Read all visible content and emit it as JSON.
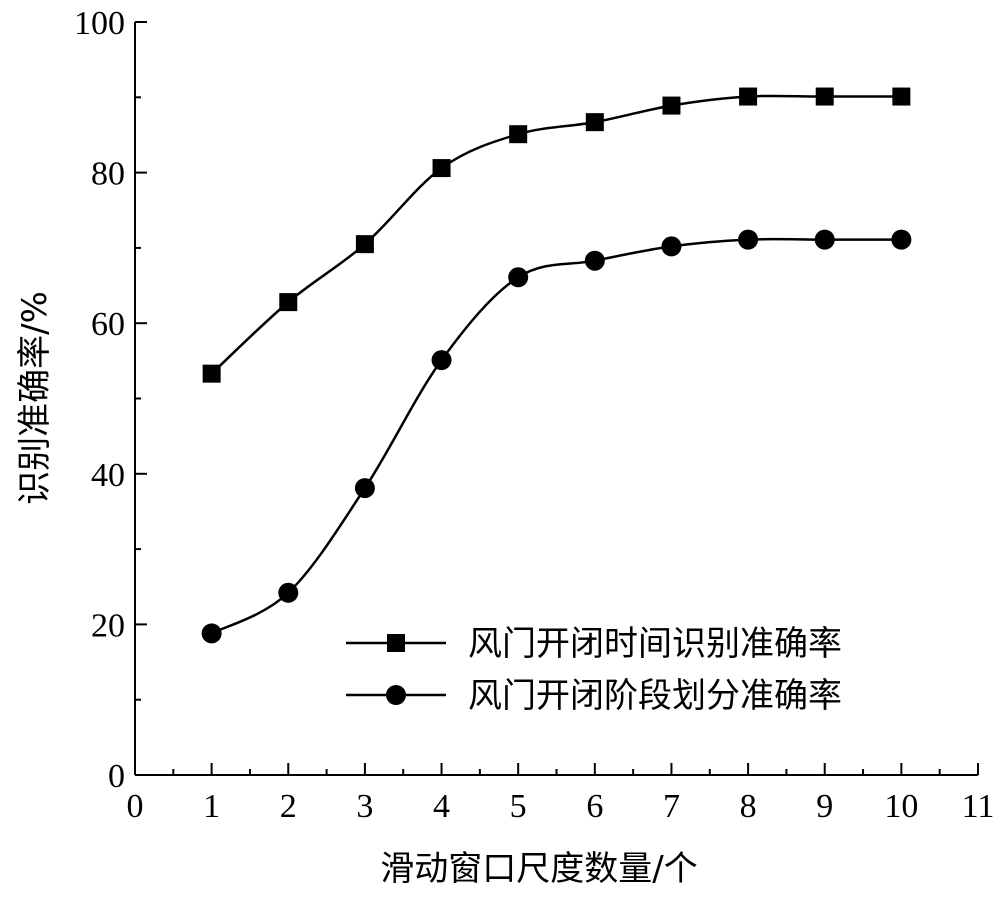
{
  "chart_data": {
    "type": "line",
    "xlabel": "滑动窗口尺度数量/个",
    "ylabel": "识别准确率/%",
    "xlim": [
      0,
      11
    ],
    "ylim": [
      0,
      100
    ],
    "x_ticks": [
      0,
      1,
      2,
      3,
      4,
      5,
      6,
      7,
      8,
      9,
      10,
      11
    ],
    "y_ticks": [
      0,
      20,
      40,
      60,
      80,
      100
    ],
    "grid": false,
    "legend_position": "bottom-right",
    "x": [
      1,
      2,
      3,
      4,
      5,
      6,
      7,
      8,
      9,
      10
    ],
    "series": [
      {
        "name": "风门开闭时间识别准确率",
        "marker": "square",
        "values": [
          53.3,
          62.8,
          70.5,
          80.6,
          85.1,
          86.7,
          88.9,
          90.1,
          90.1,
          90.1
        ]
      },
      {
        "name": "风门开闭阶段划分准确率",
        "marker": "circle",
        "values": [
          18.8,
          24.2,
          38.1,
          55.1,
          66.1,
          68.3,
          70.2,
          71.1,
          71.1,
          71.1
        ]
      }
    ],
    "colors": {
      "line": "#000000",
      "axis": "#000000"
    }
  }
}
